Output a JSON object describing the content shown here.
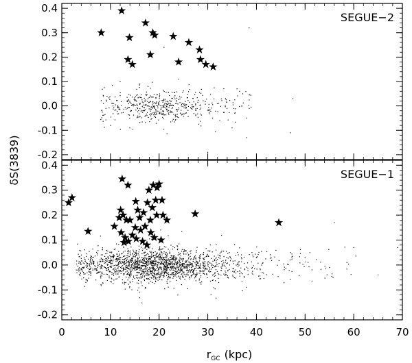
{
  "chart_data": {
    "type": "scatter",
    "xlabel_main": "r",
    "xlabel_sub": "GC",
    "xlabel_unit": "(kpc)",
    "ylabel": "δS(3839)",
    "xlim": [
      0,
      70
    ],
    "ylim": [
      -0.22,
      0.42
    ],
    "x_ticks": [
      0,
      10,
      20,
      30,
      40,
      50,
      60,
      70
    ],
    "y_ticks": [
      -0.2,
      -0.1,
      0.0,
      0.1,
      0.2,
      0.3,
      0.4
    ],
    "y_tick_labels": [
      "-0.2",
      "-0.1",
      "0.0",
      "0.1",
      "0.2",
      "0.3",
      "0.4"
    ],
    "x_tick_labels": [
      "0",
      "10",
      "20",
      "30",
      "40",
      "50",
      "60",
      "70"
    ],
    "panels": [
      {
        "label": "SEGUE−2",
        "stars": [
          [
            12.3,
            0.39
          ],
          [
            8.1,
            0.3
          ],
          [
            13.9,
            0.28
          ],
          [
            17.2,
            0.34
          ],
          [
            18.7,
            0.3
          ],
          [
            19.1,
            0.29
          ],
          [
            22.9,
            0.285
          ],
          [
            26.1,
            0.26
          ],
          [
            28.3,
            0.23
          ],
          [
            28.5,
            0.19
          ],
          [
            29.6,
            0.17
          ],
          [
            31.1,
            0.16
          ],
          [
            13.6,
            0.19
          ],
          [
            14.5,
            0.17
          ],
          [
            18.2,
            0.21
          ],
          [
            24.0,
            0.18
          ]
        ],
        "dots": {
          "n": 520,
          "x_center": 19,
          "x_spread": 6.5,
          "x_min": 8,
          "x_max": 39,
          "y_center": 0.0,
          "y_spread": 0.032,
          "seed": 11,
          "extras": [
            [
              38.5,
              0.32
            ],
            [
              21.0,
              0.24
            ],
            [
              47.5,
              0.03
            ],
            [
              47.0,
              -0.11
            ],
            [
              30.0,
              -0.19
            ],
            [
              38.0,
              -0.13
            ],
            [
              24.0,
              0.11
            ],
            [
              12.0,
              0.1
            ],
            [
              36.0,
              0.07
            ],
            [
              35.0,
              -0.09
            ],
            [
              10.0,
              -0.08
            ]
          ]
        }
      },
      {
        "label": "SEGUE−1",
        "stars": [
          [
            1.4,
            0.25
          ],
          [
            2.1,
            0.27
          ],
          [
            5.4,
            0.135
          ],
          [
            10.8,
            0.155
          ],
          [
            12.1,
            0.22
          ],
          [
            12.4,
            0.345
          ],
          [
            13.6,
            0.32
          ],
          [
            11.8,
            0.19
          ],
          [
            12.6,
            0.2
          ],
          [
            13.3,
            0.18
          ],
          [
            13.0,
            0.11
          ],
          [
            12.2,
            0.13
          ],
          [
            14.5,
            0.12
          ],
          [
            13.7,
            0.095
          ],
          [
            12.8,
            0.09
          ],
          [
            15.3,
            0.105
          ],
          [
            16.0,
            0.19
          ],
          [
            15.6,
            0.22
          ],
          [
            15.2,
            0.255
          ],
          [
            16.8,
            0.21
          ],
          [
            17.6,
            0.25
          ],
          [
            17.9,
            0.3
          ],
          [
            18.8,
            0.32
          ],
          [
            19.6,
            0.31
          ],
          [
            20.0,
            0.325
          ],
          [
            19.3,
            0.26
          ],
          [
            20.6,
            0.26
          ],
          [
            18.6,
            0.23
          ],
          [
            19.5,
            0.2
          ],
          [
            20.8,
            0.2
          ],
          [
            21.6,
            0.18
          ],
          [
            18.2,
            0.18
          ],
          [
            17.1,
            0.155
          ],
          [
            18.3,
            0.13
          ],
          [
            19.0,
            0.11
          ],
          [
            20.4,
            0.1
          ],
          [
            16.6,
            0.095
          ],
          [
            17.5,
            0.08
          ],
          [
            15.1,
            0.15
          ],
          [
            16.2,
            0.14
          ],
          [
            14.0,
            0.18
          ],
          [
            27.4,
            0.205
          ],
          [
            44.6,
            0.17
          ]
        ],
        "dots": {
          "n": 1900,
          "x_center": 18,
          "x_spread": 8,
          "x_min": 3,
          "x_max": 64,
          "y_center": 0.0,
          "y_spread": 0.033,
          "seed": 29,
          "extras": [
            [
              56.0,
              0.17
            ],
            [
              47.0,
              0.05
            ],
            [
              60.0,
              0.07
            ],
            [
              65.0,
              -0.04
            ],
            [
              69.0,
              0.07
            ],
            [
              4.0,
              0.04
            ],
            [
              7.0,
              -0.06
            ],
            [
              3.0,
              -0.02
            ],
            [
              50.0,
              0.03
            ],
            [
              55.0,
              -0.01
            ]
          ]
        }
      }
    ]
  }
}
